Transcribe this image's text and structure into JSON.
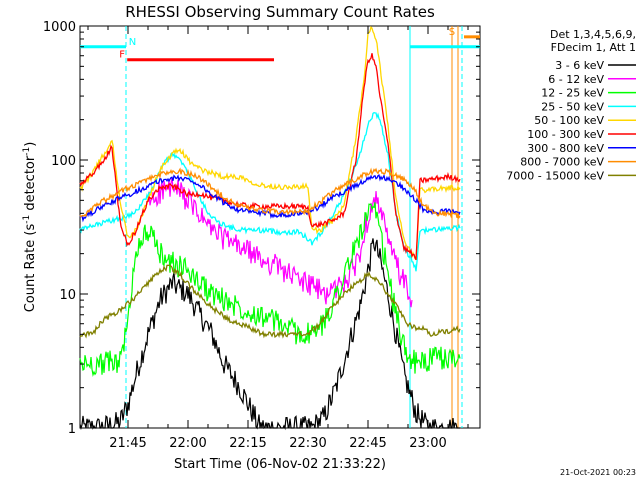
{
  "chart_data": {
    "type": "line",
    "title": "RHESSI Observing Summary Count Rates",
    "xlabel": "Start Time (06-Nov-02 21:33:22)",
    "ylabel_main": "Count Rate (s",
    "ylabel_sup1": "-1",
    "ylabel_mid": " detector",
    "ylabel_sup2": "-1",
    "ylabel_end": ")",
    "y_scale": "log",
    "ylim": [
      1,
      1000
    ],
    "xlim_minutes": [
      0,
      100
    ],
    "y_ticks": [
      {
        "value": 1,
        "label": "1"
      },
      {
        "value": 10,
        "label": "10"
      },
      {
        "value": 100,
        "label": "100"
      },
      {
        "value": 1000,
        "label": "1000"
      }
    ],
    "x_ticks": [
      {
        "minute": 12,
        "label": "21:45"
      },
      {
        "minute": 27,
        "label": "22:00"
      },
      {
        "minute": 42,
        "label": "22:15"
      },
      {
        "minute": 57,
        "label": "22:30"
      },
      {
        "minute": 72,
        "label": "22:45"
      },
      {
        "minute": 87,
        "label": "23:00"
      }
    ],
    "legend_header": [
      "Det 1,3,4,5,6,9,",
      "FDecim 1, Att 1"
    ],
    "series": [
      {
        "name": "3 - 6 keV",
        "color": "#000000",
        "x": [
          0,
          5,
          10,
          12,
          14,
          17,
          20,
          23,
          27,
          30,
          33,
          36,
          40,
          45,
          50,
          55,
          58,
          61,
          64,
          67,
          70,
          72,
          73.5,
          75,
          77,
          79,
          81,
          84,
          87,
          89,
          92,
          95
        ],
        "y": [
          1,
          1,
          1.1,
          1.5,
          2.5,
          5,
          9,
          12,
          10,
          7,
          5,
          3,
          2,
          1,
          1,
          1,
          1,
          1.2,
          2,
          4,
          8,
          15,
          25,
          18,
          10,
          5,
          2.5,
          1.3,
          1,
          1,
          1,
          1
        ]
      },
      {
        "name": "6 - 12 keV",
        "color": "#ff00ff",
        "x": [
          17,
          20,
          23,
          25,
          27,
          30,
          33,
          36,
          39,
          42,
          45,
          48,
          51,
          54,
          57,
          59,
          61,
          64,
          67,
          70,
          72,
          73.5,
          75,
          77,
          79,
          81,
          83
        ],
        "y": [
          48,
          58,
          62,
          57,
          50,
          38,
          30,
          26,
          23,
          21,
          18,
          17,
          15,
          13,
          12,
          11,
          10,
          11,
          13,
          20,
          38,
          55,
          42,
          25,
          17,
          12,
          9
        ]
      },
      {
        "name": "12 - 25 keV",
        "color": "#00ff00",
        "x": [
          0,
          5,
          10,
          12,
          14,
          17,
          20,
          23,
          27,
          30,
          33,
          36,
          40,
          45,
          50,
          55,
          58,
          61,
          64,
          67,
          70,
          72,
          73.5,
          75,
          77,
          79,
          81,
          84,
          87,
          89,
          92,
          95
        ],
        "y": [
          3,
          3,
          3.2,
          6,
          22,
          30,
          20,
          17,
          15,
          12,
          10,
          9,
          8,
          7,
          6,
          5,
          5,
          6,
          10,
          16,
          28,
          40,
          42,
          28,
          14,
          7,
          4,
          3,
          3.2,
          3.3,
          3.3,
          3.3
        ]
      },
      {
        "name": "25 - 50 keV",
        "color": "#00ffff",
        "x": [
          0,
          3,
          6,
          9,
          12,
          15,
          18,
          21,
          23,
          25,
          28,
          31,
          34,
          37,
          40,
          45,
          50,
          55,
          58,
          60,
          63,
          66,
          69,
          72,
          73.5,
          75,
          77,
          79,
          81,
          83,
          84,
          85,
          88,
          92,
          95
        ],
        "y": [
          30,
          32,
          34,
          36,
          38,
          45,
          60,
          95,
          110,
          100,
          70,
          45,
          35,
          32,
          30,
          30,
          29,
          29,
          24,
          28,
          38,
          55,
          90,
          180,
          230,
          200,
          110,
          40,
          22,
          18,
          15,
          30,
          30,
          31,
          31
        ]
      },
      {
        "name": "50 - 100 keV",
        "color": "#ffd700",
        "x": [
          0,
          3,
          6,
          8,
          10,
          12,
          14,
          17,
          20,
          23,
          25,
          27,
          30,
          33,
          36,
          40,
          45,
          50,
          55,
          57,
          58,
          60,
          63,
          66,
          69,
          71,
          72,
          73,
          74,
          75,
          77,
          79,
          81,
          83,
          84,
          85,
          88,
          92,
          95
        ],
        "y": [
          60,
          80,
          110,
          140,
          50,
          26,
          30,
          50,
          85,
          110,
          120,
          100,
          85,
          80,
          75,
          75,
          65,
          63,
          63,
          63,
          30,
          30,
          35,
          45,
          150,
          400,
          850,
          1000,
          800,
          500,
          180,
          50,
          25,
          20,
          18,
          60,
          60,
          62,
          62
        ]
      },
      {
        "name": "100 - 300 keV",
        "color": "#ff0000",
        "x": [
          0,
          3,
          6,
          8,
          10,
          12,
          14,
          17,
          20,
          23,
          25,
          27,
          30,
          33,
          36,
          40,
          45,
          50,
          55,
          57,
          58,
          60,
          63,
          66,
          69,
          71,
          72,
          73,
          74,
          75,
          77,
          79,
          81,
          83,
          84,
          85,
          88,
          92,
          95
        ],
        "y": [
          65,
          78,
          100,
          125,
          35,
          23,
          30,
          50,
          62,
          64,
          60,
          55,
          56,
          52,
          50,
          46,
          45,
          45,
          45,
          44,
          32,
          33,
          35,
          40,
          100,
          350,
          550,
          600,
          500,
          300,
          130,
          40,
          22,
          20,
          18,
          70,
          72,
          75,
          72
        ]
      },
      {
        "name": "300 - 800 keV",
        "color": "#0000ff",
        "x": [
          0,
          5,
          10,
          15,
          20,
          23,
          25,
          27,
          30,
          33,
          36,
          40,
          45,
          50,
          55,
          57,
          60,
          63,
          66,
          69,
          72,
          75,
          78,
          81,
          84,
          86,
          89,
          92,
          95
        ],
        "y": [
          36,
          44,
          52,
          60,
          70,
          73,
          73,
          72,
          65,
          55,
          48,
          42,
          40,
          39,
          40,
          41,
          45,
          52,
          58,
          65,
          72,
          75,
          70,
          62,
          50,
          42,
          40,
          42,
          41
        ]
      },
      {
        "name": "800 - 7000 keV",
        "color": "#ff8c00",
        "x": [
          0,
          5,
          10,
          15,
          20,
          23,
          25,
          27,
          30,
          33,
          36,
          40,
          45,
          50,
          55,
          57,
          60,
          63,
          66,
          69,
          72,
          75,
          78,
          81,
          84,
          86,
          89,
          92,
          95
        ],
        "y": [
          37,
          48,
          58,
          68,
          78,
          82,
          82,
          80,
          73,
          62,
          53,
          45,
          42,
          41,
          41,
          42,
          48,
          57,
          65,
          72,
          80,
          83,
          80,
          72,
          58,
          45,
          40,
          40,
          38
        ]
      },
      {
        "name": "7000 - 15000 keV",
        "color": "#808000",
        "x": [
          0,
          3,
          6,
          10,
          13,
          16,
          19,
          22,
          25,
          28,
          31,
          34,
          37,
          40,
          43,
          46,
          50,
          54,
          57,
          60,
          63,
          66,
          69,
          72,
          74,
          76,
          78,
          80,
          82,
          84,
          86,
          88,
          90,
          92,
          95
        ],
        "y": [
          5,
          5,
          6.5,
          7.5,
          9,
          11,
          14,
          16,
          14,
          11,
          9,
          7.5,
          6.5,
          6,
          5.5,
          5,
          5,
          5,
          5,
          6,
          8,
          10,
          12,
          14,
          13,
          11,
          9,
          7.5,
          6,
          5.5,
          5.5,
          5,
          5.2,
          5.2,
          5.5
        ]
      }
    ],
    "vertical_markers": [
      {
        "minute": 11.5,
        "color": "#00ffff",
        "style": "dashed"
      },
      {
        "minute": 82.5,
        "color": "#00ffff",
        "style": "solid"
      },
      {
        "minute": 95.5,
        "color": "#00ffff",
        "style": "dashed"
      },
      {
        "minute": 93.0,
        "color": "#ff8c00",
        "style": "solid"
      },
      {
        "minute": 94.5,
        "color": "#ff8c00",
        "style": "solid"
      }
    ],
    "flag_bars": [
      {
        "label": "N",
        "color": "#00ffff",
        "x_start": 0,
        "x_end": 11.5,
        "y": 700,
        "label_minute": 12.2
      },
      {
        "label": "",
        "color": "#00ffff",
        "x_start": 82.5,
        "x_end": 100,
        "y": 700,
        "label_minute": 0
      },
      {
        "label": "F",
        "color": "#ff0000",
        "x_start": 11.8,
        "x_end": 48.5,
        "y": 560,
        "label_minute": 9.8
      },
      {
        "label": "S",
        "color": "#ff8c00",
        "x_start": 96,
        "x_end": 100,
        "y": 830,
        "label_minute": 92.2
      }
    ],
    "footer_timestamp": "21-Oct-2021 00:23"
  }
}
